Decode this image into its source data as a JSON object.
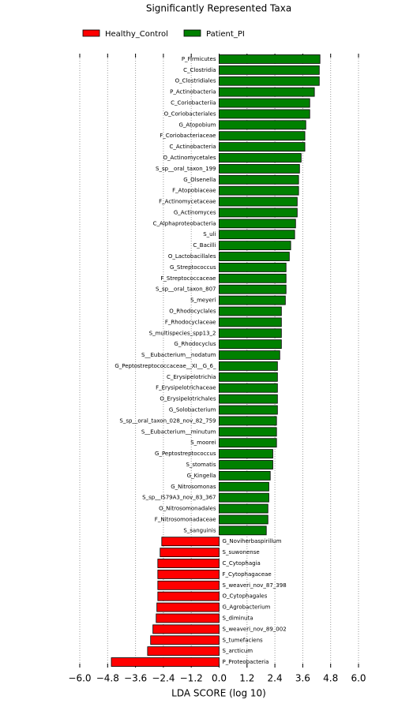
{
  "chart_data": {
    "type": "barh",
    "title": "Significantly Represented Taxa",
    "xlabel": "LDA SCORE (log 10)",
    "categories": [
      "P_Firmicutes",
      "C_Clostridia",
      "O_Clostridiales",
      "P_Actinobacteria",
      "C_Coriobacteriia",
      "O_Coriobacteriales",
      "G_Atopobium",
      "F_Coriobacteriaceae",
      "C_Actinobacteria",
      "O_Actinomycetales",
      "S_sp__oral_taxon_199",
      "G_Olsenella",
      "F_Atopobiaceae",
      "F_Actinomycetaceae",
      "G_Actinomyces",
      "C_Alphaproteobacteria",
      "S_uli",
      "C_Bacilli",
      "O_Lactobacillales",
      "G_Streptococcus",
      "F_Streptococcaceae",
      "S_sp__oral_taxon_807",
      "S_meyeri",
      "O_Rhodocyclales",
      "F_Rhodocyclaceae",
      "S_multispecies_spp13_2",
      "G_Rhodocyclus",
      "S__Eubacterium__nodatum",
      "G_Peptostreptococcaceae__XI__G_6_",
      "C_Erysipelotrichia",
      "F_Erysipelotrichaceae",
      "O_Erysipelotrichales",
      "G_Solobacterium",
      "S_sp__oral_taxon_028_nov_82_759",
      "S__Eubacterium__minutum",
      "S_moorei",
      "G_Peptostreptococcus",
      "S_stomatis",
      "G_Kingella",
      "G_Nitrosomonas",
      "S_sp__IS79A3_nov_83_367",
      "O_Nitrosomonadales",
      "F_Nitrosomonadaceae",
      "S_sanguinis",
      "G_Noviherbaspirillum",
      "S_suwonense",
      "C_Cytophagia",
      "F_Cytophagaceae",
      "S_weaveri_nov_87_398",
      "O_Cytophagales",
      "G_Agrobacterium",
      "S_diminuta",
      "S_weaveri_nov_89_002",
      "S_tumefaciens",
      "S_arcticum",
      "P_Proteobacteria"
    ],
    "series": [
      {
        "name": "Healthy_Control",
        "color": "#ff0000",
        "values": [
          null,
          null,
          null,
          null,
          null,
          null,
          null,
          null,
          null,
          null,
          null,
          null,
          null,
          null,
          null,
          null,
          null,
          null,
          null,
          null,
          null,
          null,
          null,
          null,
          null,
          null,
          null,
          null,
          null,
          null,
          null,
          null,
          null,
          null,
          null,
          null,
          null,
          null,
          null,
          null,
          null,
          null,
          null,
          null,
          -2.47,
          -2.54,
          -2.64,
          -2.64,
          -2.64,
          -2.64,
          -2.68,
          -2.71,
          -2.85,
          -2.95,
          -3.08,
          -4.64
        ]
      },
      {
        "name": "Patient_PI",
        "color": "#008000",
        "values": [
          4.34,
          4.31,
          4.31,
          4.1,
          3.9,
          3.9,
          3.73,
          3.69,
          3.69,
          3.53,
          3.46,
          3.42,
          3.42,
          3.36,
          3.36,
          3.29,
          3.25,
          3.08,
          3.02,
          2.88,
          2.88,
          2.88,
          2.85,
          2.68,
          2.68,
          2.68,
          2.68,
          2.61,
          2.51,
          2.51,
          2.51,
          2.51,
          2.51,
          2.47,
          2.47,
          2.47,
          2.31,
          2.31,
          2.2,
          2.14,
          2.14,
          2.1,
          2.1,
          2.03,
          null,
          null,
          null,
          null,
          null,
          null,
          null,
          null,
          null,
          null,
          null,
          null
        ]
      }
    ],
    "xlim": [
      -6.0,
      6.0
    ],
    "xticks": [
      {
        "value": -6.0,
        "label": "−6.0"
      },
      {
        "value": -4.8,
        "label": "−4.8"
      },
      {
        "value": -3.6,
        "label": "−3.6"
      },
      {
        "value": -2.4,
        "label": "−2.4"
      },
      {
        "value": -1.2,
        "label": "−1.2"
      },
      {
        "value": 0,
        "label": "0.0"
      },
      {
        "value": 1.2,
        "label": "1.2"
      },
      {
        "value": 2.4,
        "label": "2.4"
      },
      {
        "value": 3.6,
        "label": "3.6"
      },
      {
        "value": 4.8,
        "label": "4.8"
      },
      {
        "value": 6.0,
        "label": "6.0"
      }
    ],
    "grid": true
  }
}
